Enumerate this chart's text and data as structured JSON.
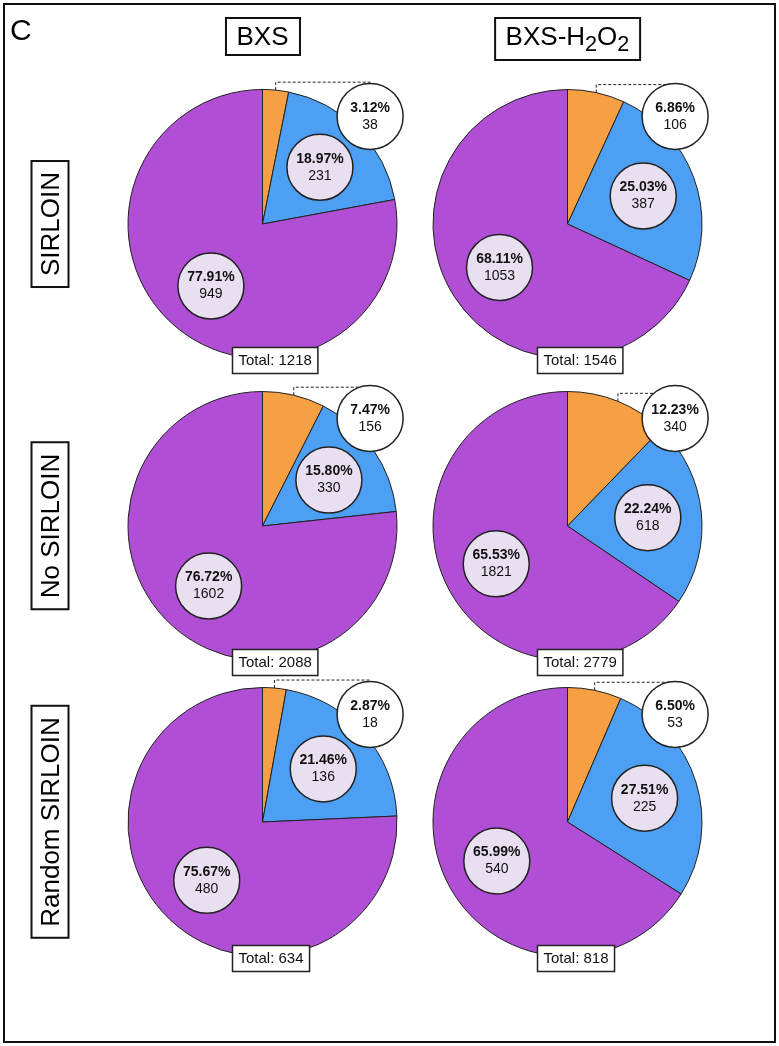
{
  "chart_data": [
    {
      "type": "pie",
      "title": "BXS",
      "ylabel": "SIRLOIN",
      "categories": [
        null,
        null,
        null
      ],
      "values": [
        38,
        231,
        949
      ],
      "colors": [
        "#f7a043",
        "#4c9ff2",
        "#b04ed6"
      ],
      "value_labels": [
        "3.12%\n38",
        "18.97%\n231",
        "77.91%\n949"
      ],
      "annotations": [
        "C",
        "Total: 1218"
      ]
    },
    {
      "type": "pie",
      "title": "BXS-H$_{2}$O$_{2}$",
      "categories": [
        null,
        null,
        null
      ],
      "values": [
        106,
        387,
        1053
      ],
      "colors": [
        "#f7a043",
        "#4c9ff2",
        "#b04ed6"
      ],
      "value_labels": [
        "6.86%\n106",
        "25.03%\n387",
        "68.11%\n1053"
      ],
      "annotations": [
        "Total: 1546"
      ]
    },
    {
      "type": "pie",
      "ylabel": "No SIRLOIN",
      "categories": [
        null,
        null,
        null
      ],
      "values": [
        156,
        330,
        1602
      ],
      "colors": [
        "#f7a043",
        "#4c9ff2",
        "#b04ed6"
      ],
      "value_labels": [
        "7.47%\n156",
        "15.80%\n330",
        "76.72%\n1602"
      ],
      "annotations": [
        "Total: 2088"
      ]
    },
    {
      "type": "pie",
      "categories": [
        null,
        null,
        null
      ],
      "values": [
        340,
        618,
        1821
      ],
      "colors": [
        "#f7a043",
        "#4c9ff2",
        "#b04ed6"
      ],
      "value_labels": [
        "12.23%\n340",
        "22.24%\n618",
        "65.53%\n1821"
      ],
      "annotations": [
        "Total: 2779"
      ]
    },
    {
      "type": "pie",
      "ylabel": "Random SIRLOIN",
      "categories": [
        null,
        null,
        null
      ],
      "values": [
        18,
        136,
        480
      ],
      "colors": [
        "#f7a043",
        "#4c9ff2",
        "#b04ed6"
      ],
      "value_labels": [
        "2.87%\n18",
        "21.46%\n136",
        "75.67%\n480"
      ],
      "annotations": [
        "Total: 634"
      ]
    },
    {
      "type": "pie",
      "categories": [
        null,
        null,
        null
      ],
      "values": [
        53,
        225,
        540
      ],
      "colors": [
        "#f7a043",
        "#4c9ff2",
        "#b04ed6"
      ],
      "value_labels": [
        "6.50%\n53",
        "27.51%\n225",
        "65.99%\n540"
      ],
      "annotations": [
        "Total: 818"
      ]
    }
  ]
}
